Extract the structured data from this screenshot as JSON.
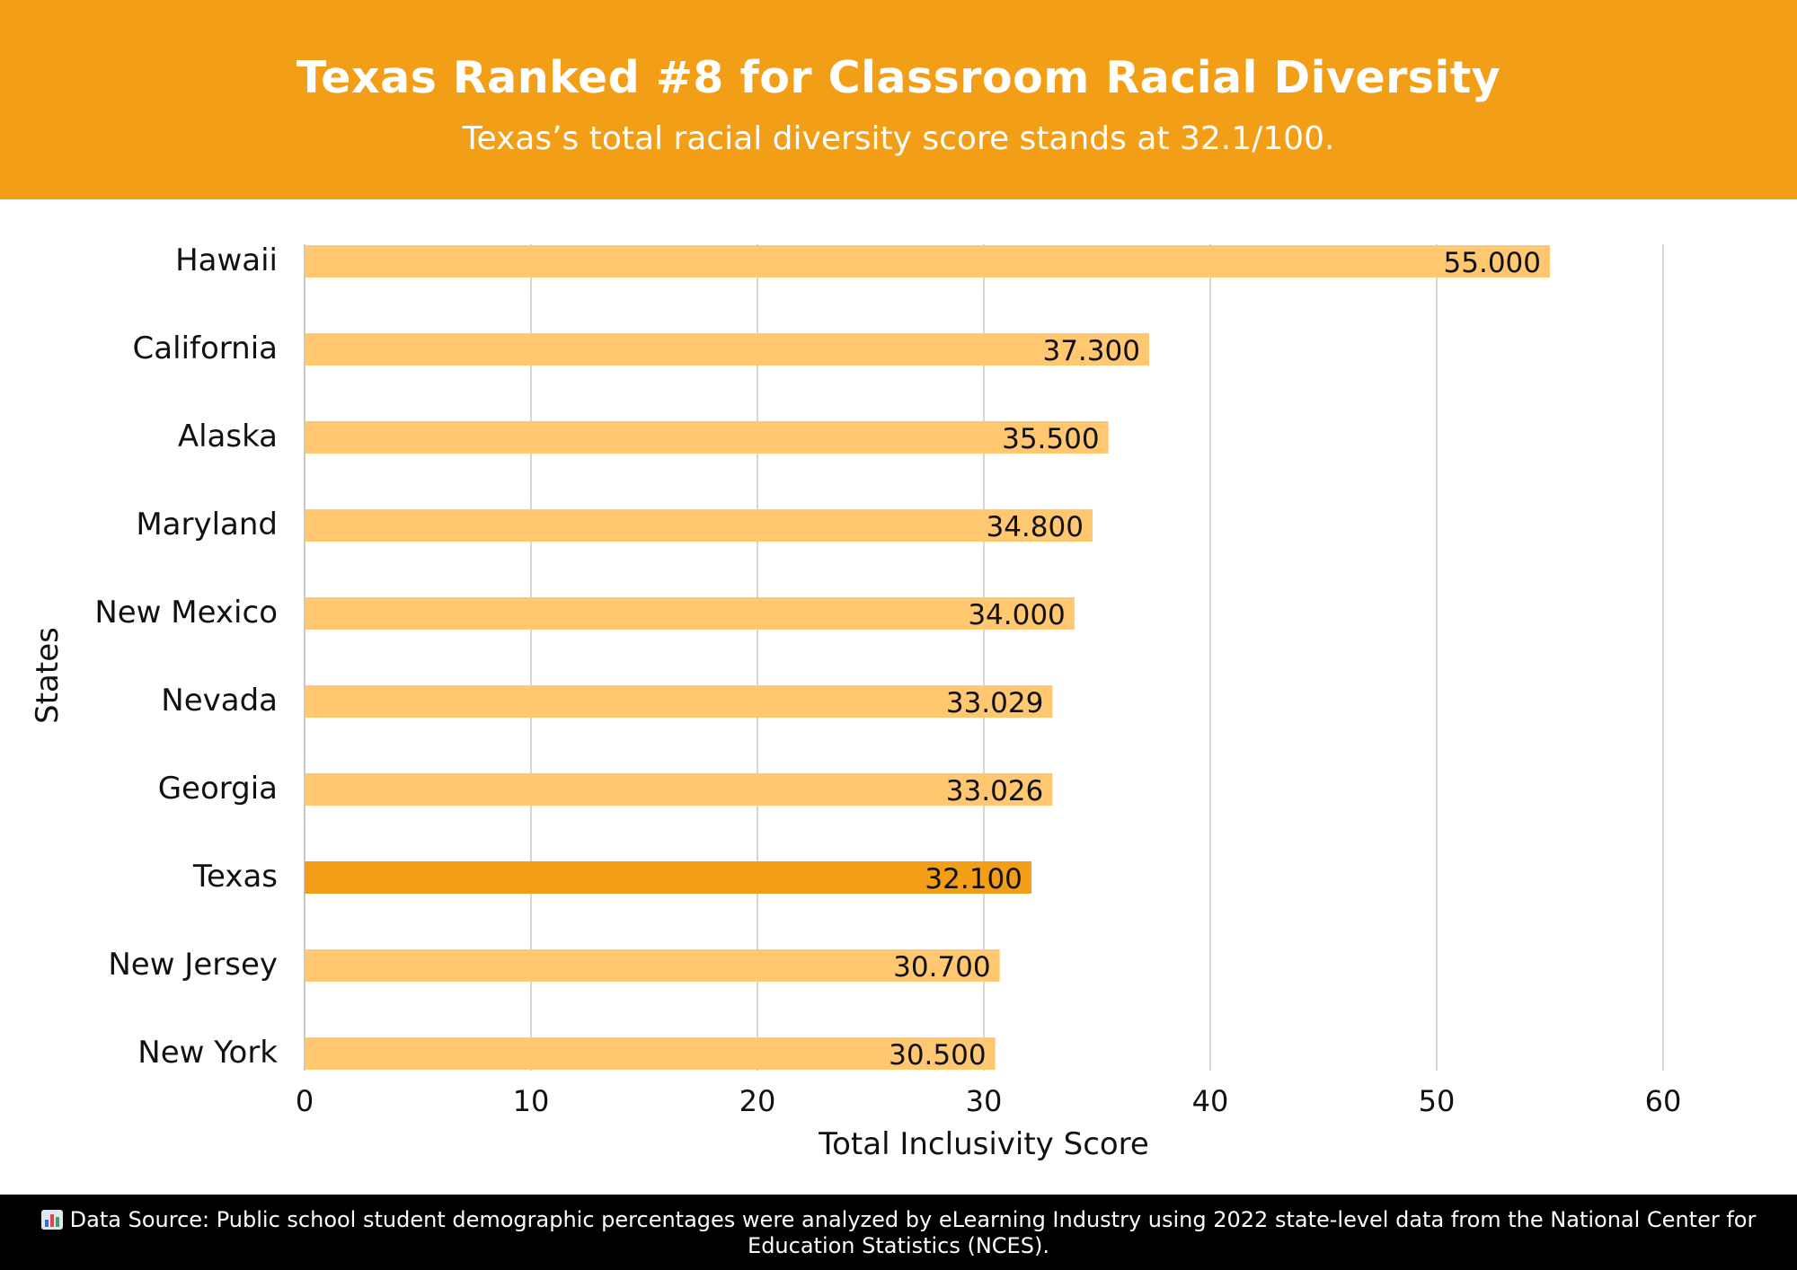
{
  "header": {
    "title": "Texas Ranked #8 for Classroom Racial Diversity",
    "subtitle": "Texas’s total racial diversity score stands at 32.1/100."
  },
  "colors": {
    "header_bg": "#f39e17",
    "bar": "#ffc870",
    "bar_highlight": "#f39e17",
    "grid": "#c8c8c8"
  },
  "chart_data": {
    "type": "bar",
    "orientation": "horizontal",
    "categories": [
      "Hawaii",
      "California",
      "Alaska",
      "Maryland",
      "New Mexico",
      "Nevada",
      "Georgia",
      "Texas",
      "New Jersey",
      "New York"
    ],
    "values": [
      55.0,
      37.3,
      35.5,
      34.8,
      34.0,
      33.029,
      33.026,
      32.1,
      30.7,
      30.5
    ],
    "value_labels": [
      "55.000",
      "37.300",
      "35.500",
      "34.800",
      "34.000",
      "33.029",
      "33.026",
      "32.100",
      "30.700",
      "30.500"
    ],
    "highlight": "Texas",
    "xlabel": "Total Inclusivity Score",
    "ylabel": "States",
    "xlim": [
      0,
      60
    ],
    "xticks": [
      0,
      10,
      20,
      30,
      40,
      50,
      60
    ],
    "grid": true,
    "legend": "none"
  },
  "footer": {
    "icon": "bar-chart-icon",
    "source_text": "Data Source: Public school student demographic percentages were analyzed by eLearning Industry using 2022 state-level data from the National Center for Education Statistics (NCES)."
  }
}
